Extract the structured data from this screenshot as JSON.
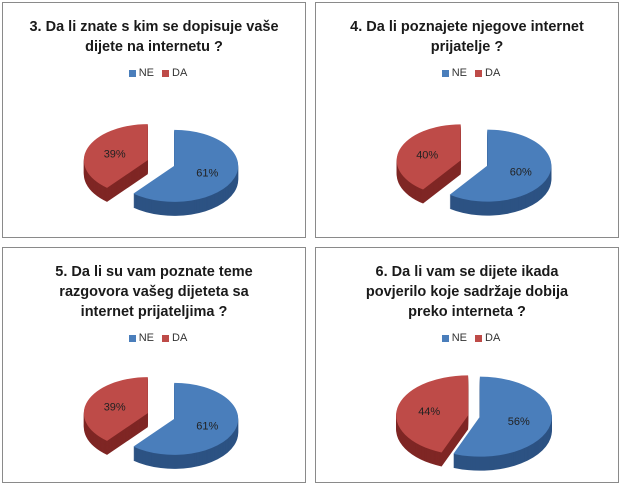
{
  "colors": {
    "NE": "#4a7ebb",
    "DA": "#be4b48",
    "NE_side": "#2c5283",
    "DA_side": "#7f2624"
  },
  "chart_data": [
    {
      "type": "pie",
      "title": [
        "3. Da li znate s kim se dopisuje vaše",
        "dijete na internetu ?"
      ],
      "legend": [
        "NE",
        "DA"
      ],
      "legend_position": "top",
      "values": [
        61,
        39
      ],
      "labels": [
        "61%",
        "39%"
      ]
    },
    {
      "type": "pie",
      "title": [
        "4. Da li poznajete njegove internet",
        "prijatelje ?"
      ],
      "legend": [
        "NE",
        "DA"
      ],
      "legend_position": "top",
      "values": [
        60,
        40
      ],
      "labels": [
        "60%",
        "40%"
      ]
    },
    {
      "type": "pie",
      "title": [
        "5. Da li su vam poznate teme",
        "razgovora vašeg dijeteta sa",
        "internet prijateljima ?"
      ],
      "legend": [
        "NE",
        "DA"
      ],
      "legend_position": "top",
      "values": [
        61,
        39
      ],
      "labels": [
        "61%",
        "39%"
      ]
    },
    {
      "type": "pie",
      "title": [
        "6. Da li vam se dijete ikada",
        "povjerilo koje sadržaje dobija",
        "preko interneta ?"
      ],
      "legend": [
        "NE",
        "DA"
      ],
      "legend_position": "top",
      "values": [
        56,
        44
      ],
      "labels": [
        "56%",
        "44%"
      ]
    }
  ]
}
